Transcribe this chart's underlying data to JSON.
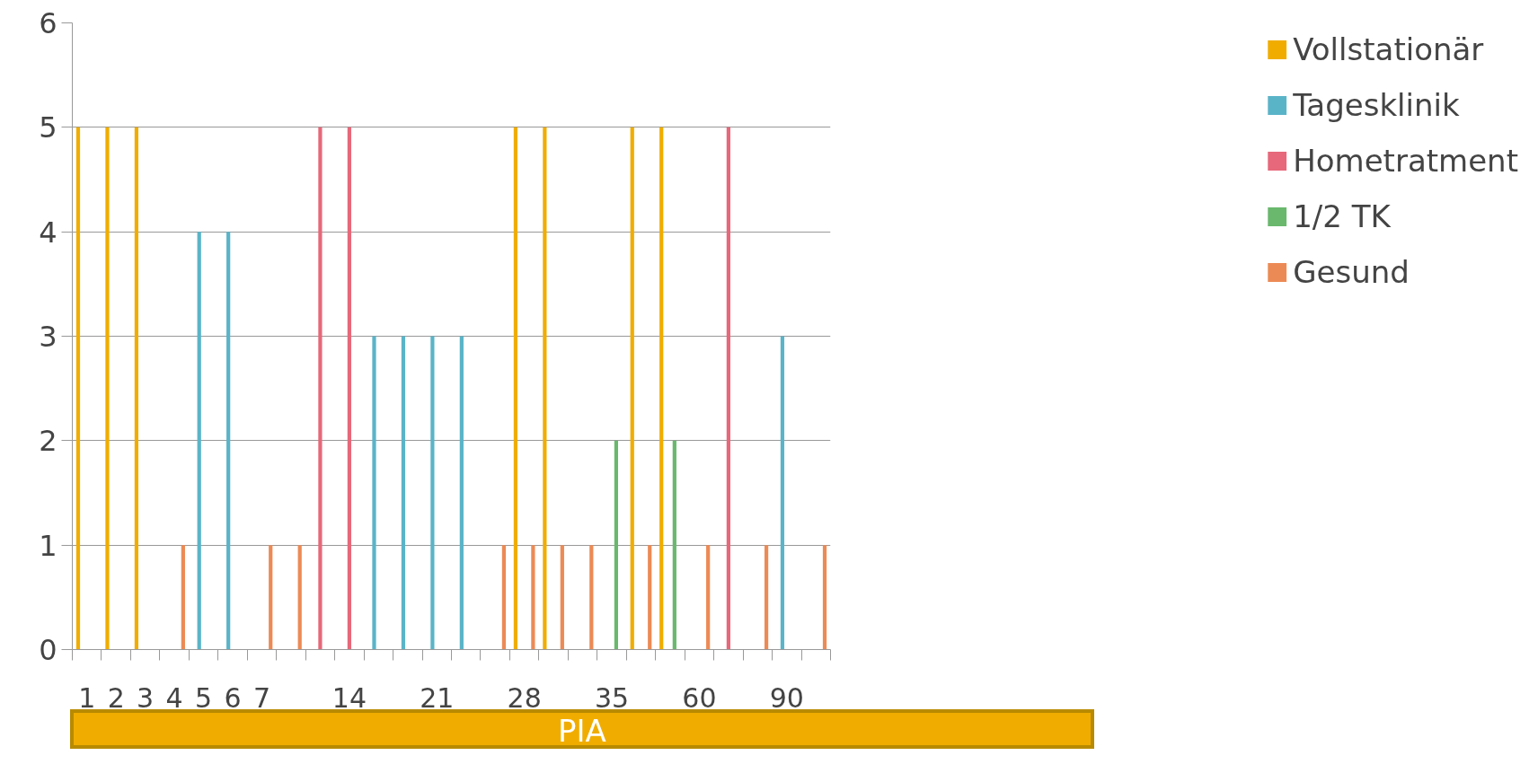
{
  "chart_data": {
    "type": "bar",
    "xlabel": "PIA",
    "categories": [
      "1",
      "2",
      "3",
      "4",
      "5",
      "6",
      "7",
      null,
      null,
      "14",
      null,
      null,
      "21",
      null,
      null,
      "28",
      null,
      null,
      "35",
      null,
      null,
      "60",
      null,
      null,
      "90",
      null
    ],
    "series": [
      {
        "name": "Vollstationär",
        "color": "#f0ad00",
        "values": [
          5,
          5,
          5,
          null,
          null,
          null,
          null,
          null,
          null,
          null,
          null,
          null,
          null,
          null,
          null,
          5,
          5,
          null,
          null,
          5,
          5,
          null,
          null,
          null,
          null,
          null
        ]
      },
      {
        "name": "Tagesklinik",
        "color": "#5ab4c8",
        "values": [
          null,
          null,
          null,
          null,
          4,
          4,
          null,
          null,
          null,
          null,
          3,
          3,
          3,
          3,
          null,
          null,
          null,
          null,
          null,
          null,
          null,
          null,
          null,
          null,
          3,
          null
        ]
      },
      {
        "name": "Hometratment",
        "color": "#e6687a",
        "values": [
          null,
          null,
          null,
          null,
          null,
          null,
          null,
          null,
          5,
          5,
          null,
          null,
          null,
          null,
          null,
          null,
          null,
          null,
          null,
          null,
          null,
          null,
          5,
          null,
          null,
          null
        ]
      },
      {
        "name": "1/2 TK",
        "color": "#6ab86d",
        "values": [
          null,
          null,
          null,
          null,
          null,
          null,
          null,
          null,
          null,
          null,
          null,
          null,
          null,
          null,
          null,
          null,
          null,
          null,
          2,
          null,
          2,
          null,
          null,
          null,
          null,
          null
        ]
      },
      {
        "name": "Gesund",
        "color": "#ec8a55",
        "values": [
          null,
          null,
          null,
          1,
          null,
          null,
          1,
          1,
          null,
          null,
          null,
          null,
          null,
          null,
          1,
          1,
          1,
          1,
          null,
          1,
          null,
          1,
          null,
          1,
          null,
          1
        ]
      }
    ],
    "ylim": [
      0,
      6
    ],
    "yticks": [
      0,
      1,
      2,
      3,
      4,
      5,
      6
    ],
    "grid": "y",
    "legend": "right"
  }
}
